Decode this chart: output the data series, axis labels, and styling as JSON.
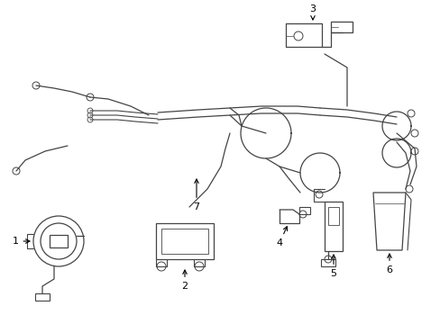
{
  "background_color": "#ffffff",
  "line_color": "#444444",
  "figsize": [
    4.89,
    3.6
  ],
  "dpi": 100
}
